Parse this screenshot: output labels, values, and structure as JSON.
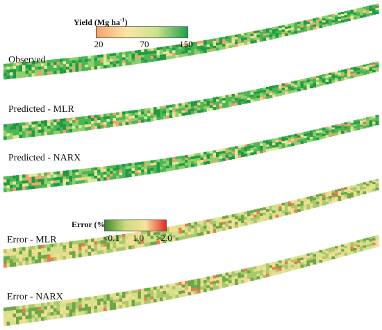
{
  "yield_legend": {
    "title_main": "Yield (Mg ha",
    "title_sup": "-1",
    "title_close": ")",
    "ticks": [
      "20",
      "70",
      "150"
    ],
    "colors": [
      "#f6a36a",
      "#fbe7a4",
      "#c9e38a",
      "#1ba34a"
    ]
  },
  "error_legend": {
    "title": "Error (%)",
    "ticks": [
      "<0.1",
      "1.0",
      ">2.0"
    ],
    "colors": [
      "#3d8a2c",
      "#c9dc7c",
      "#f7e49a",
      "#e8282a"
    ]
  },
  "panels": [
    {
      "label": "Observed",
      "scheme": "yield"
    },
    {
      "label": "Predicted - MLR",
      "scheme": "yield"
    },
    {
      "label": "Predicted - NARX",
      "scheme": "yield"
    },
    {
      "label": "Error - MLR",
      "scheme": "error"
    },
    {
      "label": "Error - NARX",
      "scheme": "error"
    }
  ]
}
